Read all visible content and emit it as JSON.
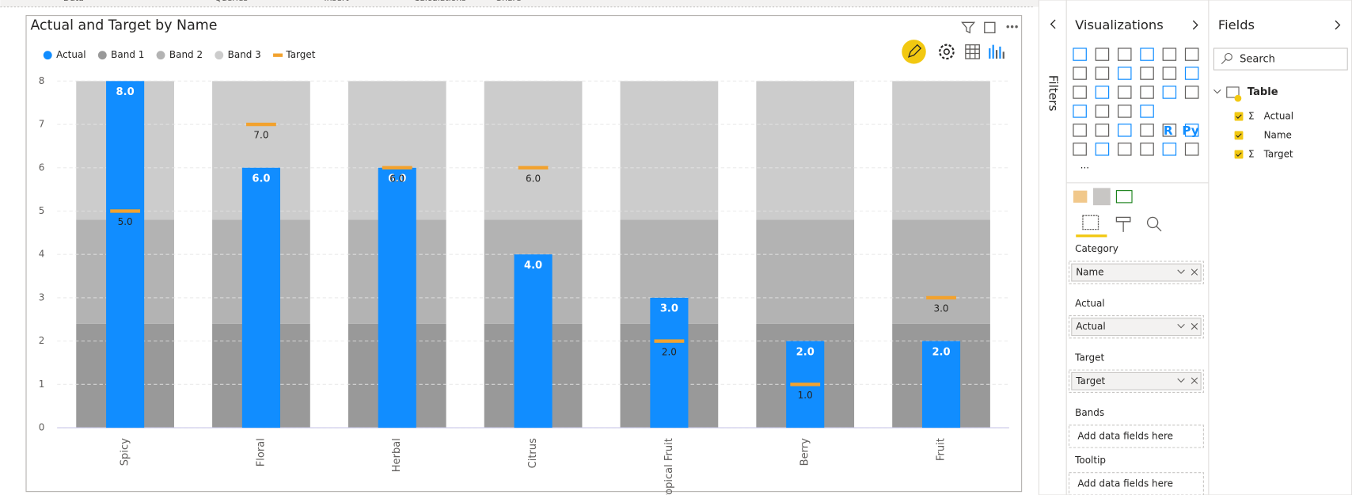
{
  "ribbon": [
    "Data",
    "Queries",
    "Insert",
    "Calculations",
    "Share"
  ],
  "chart_data": {
    "type": "bullet",
    "title": "Actual and Target by Name",
    "categories": [
      "Spicy",
      "Floral",
      "Herbal",
      "Citrus",
      "Tropical Fruit",
      "Berry",
      "Fruit"
    ],
    "series": [
      {
        "name": "Actual",
        "color": "#118dff",
        "values": [
          8,
          6,
          6,
          4,
          3,
          2,
          2
        ],
        "value_labels": [
          "8.0",
          "6.0",
          "6.0",
          "4.0",
          "3.0",
          "2.0",
          "2.0"
        ]
      },
      {
        "name": "Target",
        "color": "#f2a22e",
        "values": [
          5,
          7,
          6,
          6,
          2,
          1,
          3
        ],
        "value_labels": [
          "5.0",
          "7.0",
          "6.0",
          "6.0",
          "2.0",
          "1.0",
          "3.0"
        ]
      }
    ],
    "bands": [
      {
        "name": "Band 1",
        "color": "#999999",
        "value": 2.4
      },
      {
        "name": "Band 2",
        "color": "#b3b3b3",
        "value": 4.8
      },
      {
        "name": "Band 3",
        "color": "#cccccc",
        "value": 8
      }
    ],
    "ylim": [
      0,
      8
    ],
    "yticks": [
      0,
      1,
      2,
      3,
      4,
      5,
      6,
      7,
      8
    ],
    "grid": true
  },
  "filters_label": "Filters",
  "visualizations": {
    "title": "Visualizations",
    "icon_labels": [
      "R",
      "Py"
    ],
    "wells": [
      {
        "label": "Category",
        "field": "Name"
      },
      {
        "label": "Actual",
        "field": "Actual"
      },
      {
        "label": "Target",
        "field": "Target"
      },
      {
        "label": "Bands",
        "placeholder": "Add data fields here"
      },
      {
        "label": "Tooltip",
        "placeholder": "Add data fields here"
      }
    ]
  },
  "fields": {
    "title": "Fields",
    "search": "Search",
    "table": "Table",
    "items": [
      {
        "name": "Actual",
        "icon": "Σ"
      },
      {
        "name": "Name"
      },
      {
        "name": "Target",
        "icon": "Σ"
      }
    ]
  }
}
